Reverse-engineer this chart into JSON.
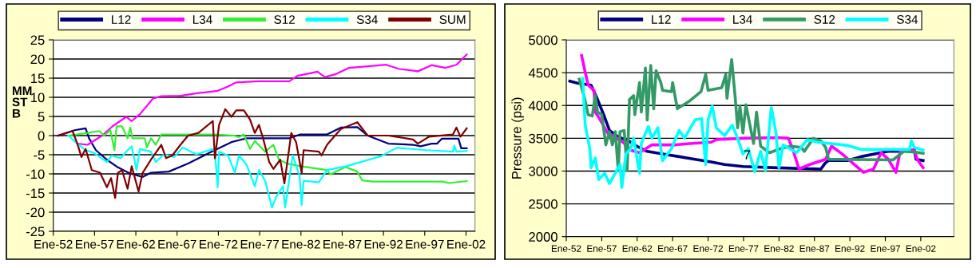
{
  "chart_data": [
    {
      "type": "line",
      "ylabel": "MM\nST\nB",
      "xlim": [
        "1952-01",
        "2003-02"
      ],
      "ylim": [
        -25,
        25
      ],
      "yticks": [
        -25,
        -20,
        -15,
        -10,
        -5,
        0,
        5,
        10,
        15,
        20,
        25
      ],
      "xticks": [
        {
          "value": "1952-01",
          "label": "Ene-52"
        },
        {
          "value": "1957-01",
          "label": "Ene-57"
        },
        {
          "value": "1962-01",
          "label": "Ene-62"
        },
        {
          "value": "1967-01",
          "label": "Ene-67"
        },
        {
          "value": "1972-01",
          "label": "Ene-72"
        },
        {
          "value": "1977-01",
          "label": "Ene-77"
        },
        {
          "value": "1982-01",
          "label": "Ene-82"
        },
        {
          "value": "1987-01",
          "label": "Ene-87"
        },
        {
          "value": "1992-01",
          "label": "Ene-92"
        },
        {
          "value": "1997-01",
          "label": "Ene-97"
        },
        {
          "value": "2002-01",
          "label": "Ene-02"
        }
      ],
      "grid": "y",
      "legend": "top",
      "marker": "none",
      "line_style": "solid",
      "series": [
        {
          "name": "L12",
          "color": "#000080",
          "x": [
            "1952-08",
            "1954-08",
            "1955-12",
            "1956-05",
            "1957-03",
            "1958-07",
            "1959-11",
            "1961-02",
            "1962-11",
            "1963-11",
            "1966-01",
            "1968-05",
            "1970-12",
            "1973-08",
            "1974-07",
            "1975-06",
            "1980-08",
            "1981-12",
            "1985-03",
            "1986-11",
            "1988-11",
            "1990-02",
            "1992-08",
            "1995-08",
            "1996-07",
            "1997-11",
            "1998-07",
            "1999-02",
            "2001-02",
            "2001-06",
            "2002-02"
          ],
          "values": [
            0,
            1.4,
            1.9,
            -0.7,
            -3.8,
            -6.3,
            -8.3,
            -9.7,
            -10.8,
            -9.7,
            -9.4,
            -7.3,
            -4.5,
            -1.7,
            -1.2,
            -0.7,
            -0.7,
            0.3,
            0.3,
            2.1,
            2.2,
            0,
            -2.1,
            -2.4,
            -2.8,
            -2.1,
            -2.1,
            -0.8,
            -0.8,
            -3.3,
            -3.3
          ]
        },
        {
          "name": "L34",
          "color": "#ff00ff",
          "x": [
            "1954-12",
            "1956-03",
            "1957-12",
            "1959-03",
            "1960-11",
            "1961-07",
            "1962-07",
            "1964-02",
            "1965-02",
            "1967-06",
            "1969-08",
            "1971-12",
            "1973-03",
            "1974-03",
            "1976-11",
            "1980-08",
            "1981-08",
            "1984-01",
            "1984-12",
            "1986-03",
            "1987-11",
            "1992-05",
            "1993-12",
            "1996-03",
            "1997-11",
            "1999-07",
            "2000-11",
            "2002-02"
          ],
          "values": [
            -2.1,
            -2.4,
            0,
            2.4,
            4.9,
            3.8,
            5.6,
            9.7,
            10.3,
            10.4,
            11.1,
            11.7,
            12.8,
            13.9,
            14.2,
            14.2,
            15.6,
            16.7,
            15.3,
            16,
            17.7,
            18.5,
            17.4,
            16.8,
            18.4,
            17.7,
            18.5,
            21.2
          ]
        },
        {
          "name": "S12",
          "color": "#33ee33",
          "x": [
            "1953-11",
            "1956-03",
            "1957-08",
            "1958-03",
            "1958-12",
            "1959-06",
            "1959-09",
            "1960-05",
            "1961-01",
            "1961-05",
            "1961-08",
            "1963-02",
            "1963-05",
            "1963-11",
            "1964-06",
            "1965-02",
            "1971-08",
            "1973-12",
            "1974-07",
            "1975-02",
            "1975-11",
            "1976-06",
            "1977-09",
            "1978-09",
            "1979-05",
            "1980-05",
            "1981-12",
            "1985-03",
            "1985-08",
            "1987-06",
            "1988-11",
            "1989-06",
            "1990-09",
            "1999-03",
            "1999-12",
            "2002-02"
          ],
          "values": [
            0,
            0.7,
            1.2,
            0,
            1.4,
            -3.8,
            2.4,
            2.4,
            -0.7,
            2.1,
            -0.7,
            -0.7,
            -3.1,
            -0.7,
            -2.4,
            0.3,
            0.3,
            0,
            -0.4,
            0.3,
            -3.5,
            -1.4,
            -4.2,
            -2.4,
            -6.3,
            -7.3,
            -8.0,
            -9.0,
            -10.1,
            -8.2,
            -9.4,
            -11.7,
            -12.0,
            -12.0,
            -12.4,
            -11.9
          ]
        },
        {
          "name": "S34",
          "color": "#00ffff",
          "x": [
            "1953-11",
            "1954-12",
            "1955-12",
            "1956-12",
            "1958-07",
            "1959-02",
            "1960-03",
            "1960-11",
            "1961-07",
            "1962-02",
            "1962-07",
            "1963-11",
            "1964-06",
            "1965-06",
            "1966-09",
            "1967-09",
            "1969-05",
            "1971-05",
            "1971-08",
            "1971-12",
            "1972-02",
            "1973-03",
            "1974-01",
            "1974-07",
            "1975-06",
            "1976-06",
            "1976-12",
            "1977-09",
            "1978-07",
            "1979-01",
            "1979-11",
            "1980-02",
            "1981-01",
            "1981-11",
            "1982-02",
            "1982-05",
            "1984-03",
            "1985-03",
            "1987-07",
            "1991-09",
            "1993-08",
            "1997-03",
            "2000-06",
            "2000-08",
            "2000-11",
            "2002-02"
          ],
          "values": [
            0,
            -2.1,
            -3.8,
            -4.5,
            -6.9,
            -5.2,
            -5.9,
            -4.2,
            -2.8,
            -9.0,
            -3.5,
            -4.2,
            -6.9,
            -4.9,
            -5.6,
            -3.1,
            -4.9,
            -3.5,
            -4.2,
            -13.5,
            -4.2,
            -5.2,
            -9.7,
            -5.2,
            -7.6,
            -13.2,
            -9.0,
            -11.8,
            -18.8,
            -16.0,
            -13.2,
            -18.8,
            -5.2,
            -10.4,
            -18.1,
            -11.8,
            -12.2,
            -9.0,
            -8.0,
            -5.4,
            -3.2,
            -3.8,
            -4.2,
            -2.6,
            -4.2,
            -4.0
          ]
        },
        {
          "name": "SUM",
          "color": "#800000",
          "x": [
            "1952-08",
            "1954-05",
            "1954-12",
            "1955-06",
            "1955-12",
            "1956-09",
            "1957-09",
            "1958-07",
            "1959-01",
            "1959-07",
            "1959-11",
            "1960-05",
            "1961-01",
            "1961-07",
            "1962-05",
            "1962-11",
            "1963-11",
            "1965-02",
            "1965-09",
            "1966-06",
            "1967-06",
            "1968-05",
            "1969-08",
            "1971-05",
            "1971-08",
            "1972-02",
            "1972-11",
            "1973-08",
            "1974-03",
            "1975-02",
            "1975-11",
            "1976-06",
            "1976-12",
            "1977-06",
            "1978-03",
            "1978-09",
            "1979-07",
            "1980-01",
            "1980-11",
            "1981-06",
            "1982-02",
            "1982-05",
            "1984-03",
            "1984-07",
            "1985-03",
            "1986-11",
            "1988-11",
            "1990-02",
            "1992-08",
            "1995-08",
            "1996-03",
            "1997-07",
            "2000-06",
            "2000-11",
            "2001-05",
            "2002-02"
          ],
          "values": [
            0,
            1.2,
            -2.1,
            -5.6,
            -3.5,
            -9.0,
            -9.7,
            -13.5,
            -11.1,
            -16.3,
            -9.7,
            -9.0,
            -13.9,
            -8.0,
            -14.6,
            -9.7,
            -6.3,
            -2.4,
            -5.9,
            -5.2,
            -2.4,
            0,
            0.7,
            3.8,
            -5.9,
            2.8,
            6.9,
            4.9,
            6.6,
            6.6,
            4.2,
            0.7,
            2.8,
            -0.7,
            -6.9,
            -8.7,
            -6.3,
            -12.5,
            0.7,
            -1.7,
            -9.7,
            -3.8,
            -4.2,
            -5.2,
            -2.4,
            1.7,
            3.5,
            0,
            0,
            -1.0,
            -2.1,
            -0.3,
            0.3,
            2.1,
            -0.3,
            1.9
          ]
        }
      ]
    },
    {
      "type": "line",
      "ylabel": "Pressure (psi)",
      "xlim": [
        "1952-01",
        "2006-09"
      ],
      "ylim": [
        2000,
        5000
      ],
      "yticks": [
        2000,
        2500,
        3000,
        3500,
        4000,
        4500,
        5000
      ],
      "xticks": [
        {
          "value": "1952-01",
          "label": "Ene-52"
        },
        {
          "value": "1957-01",
          "label": "Ene-57"
        },
        {
          "value": "1962-01",
          "label": "Ene-62"
        },
        {
          "value": "1967-01",
          "label": "Ene-67"
        },
        {
          "value": "1972-01",
          "label": "Ene-72"
        },
        {
          "value": "1977-01",
          "label": "Ene-77"
        },
        {
          "value": "1982-01",
          "label": "Ene-82"
        },
        {
          "value": "1987-01",
          "label": "Ene-87"
        },
        {
          "value": "1992-01",
          "label": "Ene-92"
        },
        {
          "value": "1997-01",
          "label": "Ene-97"
        },
        {
          "value": "2002-01",
          "label": "Ene-02"
        }
      ],
      "grid": "y",
      "legend": "top",
      "marker": "none",
      "line_style": "solid",
      "annotations": [
        {
          "text": "7",
          "x": "1977-07",
          "y": 3230
        }
      ],
      "series": [
        {
          "name": "L12",
          "color": "#000080",
          "x": [
            "1952-07",
            "1953-08",
            "1955-07",
            "1956-06",
            "1957-06",
            "1958-02",
            "1959-05",
            "1960-11",
            "1961-12",
            "1963-06",
            "1965-08",
            "1967-12",
            "1970-03",
            "1972-06",
            "1974-05",
            "1976-12",
            "1981-11",
            "1987-12",
            "1988-07",
            "1989-01",
            "1991-09",
            "1993-08",
            "1995-12",
            "1997-06",
            "1998-12",
            "2001-02",
            "2001-05",
            "2002-05"
          ],
          "values": [
            4370,
            4340,
            4310,
            4090,
            3820,
            3620,
            3520,
            3460,
            3380,
            3300,
            3260,
            3220,
            3180,
            3140,
            3100,
            3070,
            3050,
            3030,
            3120,
            3160,
            3160,
            3220,
            3270,
            3300,
            3300,
            3320,
            3180,
            3160
          ]
        },
        {
          "name": "L34",
          "color": "#ff00ff",
          "x": [
            "1954-03",
            "1954-08",
            "1955-02",
            "1955-12",
            "1956-02",
            "1956-08",
            "1957-11",
            "1958-12",
            "1960-01",
            "1961-02",
            "1962-05",
            "1964-02",
            "1967-07",
            "1969-06",
            "1972-06",
            "1973-03",
            "1976-12",
            "1981-11",
            "1983-05",
            "1983-12",
            "1984-11",
            "1986-05",
            "1988-08",
            "1989-06",
            "1990-12",
            "1992-06",
            "1993-12",
            "1995-05",
            "1996-06",
            "1997-06",
            "1998-07",
            "1999-02",
            "2001-02",
            "2001-07",
            "2002-05"
          ],
          "values": [
            4760,
            4550,
            4310,
            4230,
            3900,
            3820,
            3580,
            3520,
            3440,
            3320,
            3280,
            3400,
            3400,
            3420,
            3440,
            3480,
            3500,
            3510,
            3500,
            3340,
            3030,
            3100,
            3180,
            3380,
            3260,
            3120,
            2980,
            3030,
            3280,
            3180,
            2980,
            3300,
            3320,
            3180,
            3050
          ]
        },
        {
          "name": "S12",
          "color": "#339966",
          "x": [
            "1953-11",
            "1954-08",
            "1955-02",
            "1955-09",
            "1956-02",
            "1956-06",
            "1957-01",
            "1957-08",
            "1958-02",
            "1958-07",
            "1958-12",
            "1959-05",
            "1959-08",
            "1960-03",
            "1960-08",
            "1960-12",
            "1961-07",
            "1961-09",
            "1962-05",
            "1962-08",
            "1963-03",
            "1963-06",
            "1963-12",
            "1964-05",
            "1964-09",
            "1965-05",
            "1965-08",
            "1966-11",
            "1967-01",
            "1967-09",
            "1969-06",
            "1971-01",
            "1971-09",
            "1972-01",
            "1973-12",
            "1974-07",
            "1974-09",
            "1975-05",
            "1975-11",
            "1976-03",
            "1976-07",
            "1976-12",
            "1977-05",
            "1978-06",
            "1978-11",
            "1979-06",
            "1980-09",
            "1982-03",
            "1983-09",
            "1985-03",
            "1985-08",
            "1986-11",
            "1987-12",
            "1988-08",
            "1989-01",
            "1998-02",
            "1999-08",
            "2001-02",
            "2002-05"
          ],
          "values": [
            4400,
            4110,
            3860,
            3840,
            4150,
            3900,
            3860,
            3400,
            3600,
            3400,
            3600,
            3010,
            3600,
            3620,
            3010,
            4090,
            4150,
            3860,
            4350,
            3900,
            4570,
            3780,
            4610,
            3950,
            4530,
            4350,
            4230,
            4210,
            4350,
            3950,
            4070,
            4210,
            4470,
            4230,
            4270,
            4470,
            4110,
            4700,
            4110,
            3660,
            3990,
            3580,
            4010,
            3420,
            3900,
            3380,
            3280,
            3340,
            3380,
            3360,
            3300,
            3500,
            3460,
            3360,
            3180,
            3170,
            3300,
            3290,
            3270
          ]
        },
        {
          "name": "S34",
          "color": "#00ffff",
          "x": [
            "1954-05",
            "1954-09",
            "1955-05",
            "1955-07",
            "1956-02",
            "1956-08",
            "1957-06",
            "1958-02",
            "1958-12",
            "1959-08",
            "1959-11",
            "1960-06",
            "1961-02",
            "1961-07",
            "1962-05",
            "1962-08",
            "1963-08",
            "1964-02",
            "1964-12",
            "1965-08",
            "1966-11",
            "1967-12",
            "1968-09",
            "1970-03",
            "1971-02",
            "1971-09",
            "1972-01",
            "1972-08",
            "1973-03",
            "1974-05",
            "1975-06",
            "1976-03",
            "1976-12",
            "1977-09",
            "1978-08",
            "1979-06",
            "1980-02",
            "1980-12",
            "1981-08",
            "1982-01",
            "1982-08",
            "1984-07",
            "1986-01",
            "1987-07",
            "1991-09",
            "1993-08",
            "2000-06",
            "2000-09",
            "2001-02",
            "2002-05"
          ],
          "values": [
            4410,
            3700,
            3340,
            3050,
            3200,
            2870,
            2970,
            2810,
            2970,
            3100,
            2750,
            3260,
            3340,
            3500,
            2970,
            3420,
            3680,
            3500,
            3660,
            3160,
            3340,
            3620,
            3500,
            3780,
            3800,
            3100,
            3780,
            3990,
            3660,
            3540,
            3700,
            3500,
            3260,
            3340,
            2990,
            3300,
            3010,
            3970,
            3580,
            3050,
            3400,
            3280,
            3480,
            3440,
            3390,
            3330,
            3330,
            3460,
            3360,
            3320
          ]
        }
      ]
    }
  ]
}
